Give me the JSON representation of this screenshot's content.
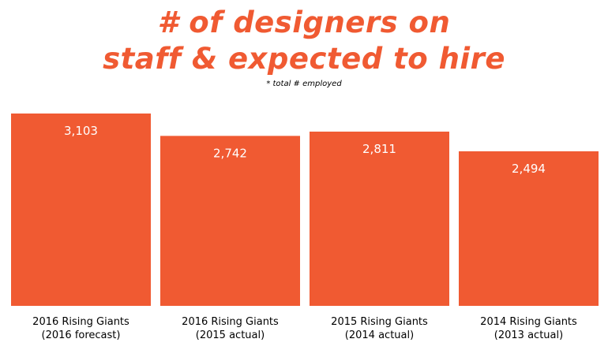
{
  "title_line1": "# of designers on",
  "title_line2": "staff & expected to hire",
  "subtitle": "* total # employed",
  "colors": {
    "accent": "#f05a32",
    "bar": "#f05a32",
    "value_text": "#ffffff",
    "label_text": "#000000"
  },
  "chart_data": {
    "type": "bar",
    "title": "# of designers on staff & expected to hire",
    "subtitle": "* total # employed",
    "categories": [
      [
        "2016 Rising Giants",
        "(2016 forecast)"
      ],
      [
        "2016 Rising Giants",
        "(2015 actual)"
      ],
      [
        "2015 Rising Giants",
        "(2014 actual)"
      ],
      [
        "2014 Rising Giants",
        "(2013 actual)"
      ]
    ],
    "values": [
      3103,
      2742,
      2811,
      2494
    ],
    "value_labels": [
      "3,103",
      "2,742",
      "2,811",
      "2,494"
    ],
    "xlabel": "",
    "ylabel": "",
    "ylim": [
      0,
      3103
    ],
    "grid": false,
    "legend": "none"
  }
}
